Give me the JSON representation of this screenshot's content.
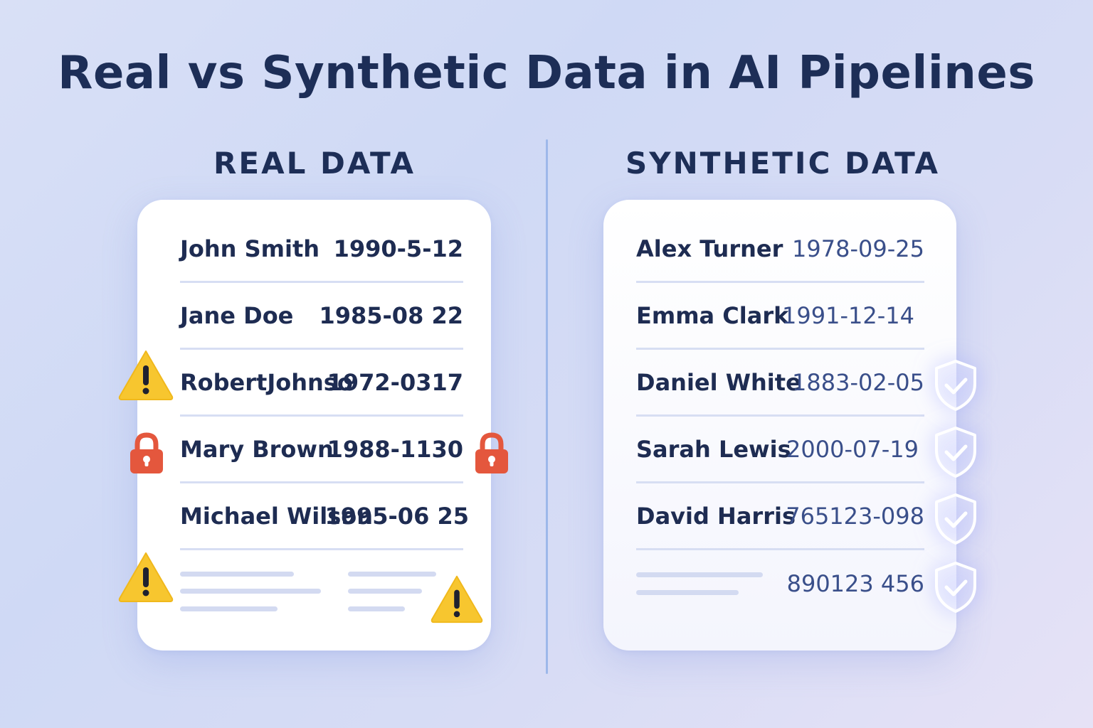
{
  "title": "Real vs Synthetic Data in AI Pipelines",
  "real": {
    "heading": "REAL DATA",
    "rows": [
      {
        "name": "John Smith",
        "date": "1990-5-12"
      },
      {
        "name": "Jane Doe",
        "date": "1985-08 22"
      },
      {
        "name": "RobertJohnso",
        "date": "1972-0317"
      },
      {
        "name": "Mary Brown",
        "date": "1988-1130"
      },
      {
        "name": "Michael Wilson",
        "date": "1995-06 25"
      }
    ]
  },
  "synthetic": {
    "heading": "SYNTHETIC DATA",
    "rows": [
      {
        "name": "Alex Turner",
        "date": "1978-09-25"
      },
      {
        "name": "Emma Clark",
        "date": "1991-12-14"
      },
      {
        "name": "Daniel White",
        "date": "1883-02-05"
      },
      {
        "name": "Sarah Lewis",
        "date": "2000-07-19"
      },
      {
        "name": "David Harris",
        "date": "765123-098"
      },
      {
        "name": "",
        "date": "890123 456"
      }
    ]
  },
  "icons": {
    "warning": "warning-triangle-icon",
    "lock": "padlock-icon",
    "shield": "shield-check-icon"
  },
  "colors": {
    "warning": "#f7c62f",
    "lock": "#e4573d",
    "shield": "#ffffff",
    "divider": "#9db8ea"
  }
}
